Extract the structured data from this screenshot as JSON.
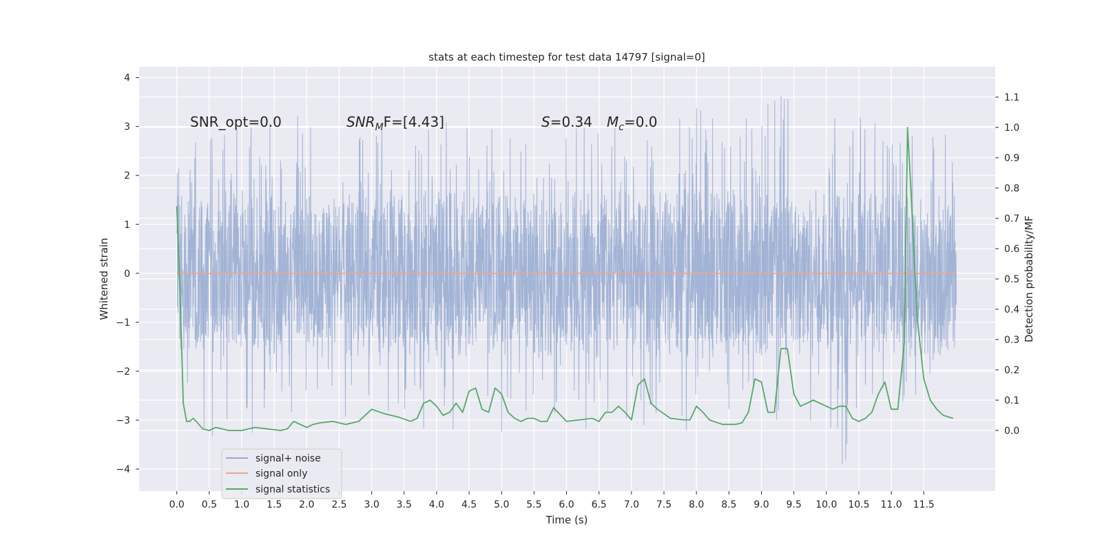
{
  "chart_data": {
    "type": "line",
    "title": "stats at each timestep for test data 14797 [signal=0]",
    "xlabel": "Time (s)",
    "ylabel": "Whitened strain",
    "y2label": "Detection probability/MF",
    "xlim": [
      -0.58,
      12.6
    ],
    "ylim": [
      -4.45,
      4.22
    ],
    "y2lim": [
      -0.2,
      1.2
    ],
    "grid": true,
    "legend_placement": "lower-left",
    "x_ticks": [
      "0.0",
      "0.5",
      "1.0",
      "1.5",
      "2.0",
      "2.5",
      "3.0",
      "3.5",
      "4.0",
      "4.5",
      "5.0",
      "5.5",
      "6.0",
      "6.5",
      "7.0",
      "7.5",
      "8.0",
      "8.5",
      "9.0",
      "9.5",
      "10.0",
      "10.5",
      "11.0",
      "11.5"
    ],
    "y_ticks": [
      "4",
      "3",
      "2",
      "1",
      "0",
      "−1",
      "−2",
      "−3",
      "−4"
    ],
    "y2_ticks": [
      "1.1",
      "1.0",
      "0.9",
      "0.8",
      "0.7",
      "0.6",
      "0.5",
      "0.4",
      "0.3",
      "0.2",
      "0.1",
      "0.0"
    ],
    "annotations": {
      "snr_opt": "SNR_opt=0.0",
      "snr_mf_base": "SNR",
      "snr_mf_sub": "M",
      "snr_mf_rest": "F=[4.43]",
      "s_var": "S",
      "s_value": "=0.34",
      "mc_var": "M",
      "mc_sub": "c",
      "mc_value": "=0.0"
    },
    "series": [
      {
        "name": "signal+ noise",
        "color": "#95a9d0",
        "axis": "left",
        "x_range": [
          0.0,
          12.0
        ],
        "envelope": {
          "typical_band": [
            -1.5,
            1.8
          ],
          "max": [
            [
              0.0,
              2.05
            ],
            [
              0.3,
              3.0
            ],
            [
              0.5,
              2.9
            ],
            [
              0.8,
              3.0
            ],
            [
              1.6,
              3.4
            ],
            [
              2.3,
              3.1
            ],
            [
              3.0,
              3.2
            ],
            [
              3.5,
              2.9
            ],
            [
              4.2,
              3.2
            ],
            [
              5.0,
              3.0
            ],
            [
              6.0,
              3.0
            ],
            [
              7.3,
              3.1
            ],
            [
              7.7,
              3.6
            ],
            [
              8.5,
              3.1
            ],
            [
              9.3,
              3.8
            ],
            [
              10.5,
              3.2
            ],
            [
              11.0,
              3.1
            ],
            [
              11.8,
              3.0
            ],
            [
              11.98,
              2.5
            ]
          ],
          "min": [
            [
              0.0,
              -2.4
            ],
            [
              0.5,
              -3.5
            ],
            [
              0.9,
              -3.6
            ],
            [
              1.7,
              -3.0
            ],
            [
              3.4,
              -3.1
            ],
            [
              4.7,
              -3.5
            ],
            [
              5.9,
              -3.1
            ],
            [
              6.6,
              -3.3
            ],
            [
              7.5,
              -3.0
            ],
            [
              8.2,
              -3.5
            ],
            [
              9.6,
              -3.0
            ],
            [
              10.3,
              -4.05
            ],
            [
              11.0,
              -2.85
            ],
            [
              11.95,
              -2.0
            ]
          ]
        }
      },
      {
        "name": "signal only",
        "color": "#e8a890",
        "axis": "left",
        "x": [
          0.0,
          12.0
        ],
        "y": [
          0.0,
          0.0
        ]
      },
      {
        "name": "signal statistics",
        "color": "#55a868",
        "axis": "right",
        "x": [
          0.0,
          0.05,
          0.1,
          0.15,
          0.2,
          0.25,
          0.3,
          0.4,
          0.5,
          0.6,
          0.7,
          0.8,
          1.0,
          1.2,
          1.4,
          1.6,
          1.7,
          1.8,
          1.9,
          2.0,
          2.1,
          2.2,
          2.4,
          2.6,
          2.8,
          3.0,
          3.2,
          3.4,
          3.6,
          3.7,
          3.8,
          3.9,
          4.0,
          4.1,
          4.2,
          4.3,
          4.4,
          4.5,
          4.6,
          4.7,
          4.8,
          4.9,
          5.0,
          5.1,
          5.2,
          5.3,
          5.4,
          5.5,
          5.6,
          5.7,
          5.8,
          6.0,
          6.2,
          6.4,
          6.5,
          6.6,
          6.7,
          6.8,
          6.9,
          7.0,
          7.1,
          7.2,
          7.3,
          7.4,
          7.6,
          7.8,
          7.9,
          8.0,
          8.1,
          8.2,
          8.4,
          8.6,
          8.7,
          8.8,
          8.9,
          9.0,
          9.1,
          9.2,
          9.3,
          9.4,
          9.5,
          9.6,
          9.7,
          9.8,
          9.9,
          10.0,
          10.1,
          10.2,
          10.3,
          10.4,
          10.5,
          10.6,
          10.7,
          10.8,
          10.9,
          11.0,
          11.1,
          11.2,
          11.25,
          11.3,
          11.4,
          11.5,
          11.6,
          11.7,
          11.8,
          11.95
        ],
        "y": [
          0.74,
          0.45,
          0.09,
          0.03,
          0.03,
          0.04,
          0.03,
          0.005,
          0.0,
          0.01,
          0.005,
          0.0,
          0.0,
          0.01,
          0.005,
          0.0,
          0.005,
          0.03,
          0.02,
          0.01,
          0.02,
          0.025,
          0.03,
          0.02,
          0.03,
          0.07,
          0.055,
          0.045,
          0.03,
          0.04,
          0.09,
          0.1,
          0.08,
          0.05,
          0.06,
          0.09,
          0.06,
          0.13,
          0.14,
          0.07,
          0.06,
          0.14,
          0.12,
          0.06,
          0.04,
          0.03,
          0.04,
          0.04,
          0.03,
          0.03,
          0.075,
          0.03,
          0.035,
          0.04,
          0.03,
          0.06,
          0.06,
          0.08,
          0.06,
          0.035,
          0.15,
          0.17,
          0.09,
          0.07,
          0.04,
          0.035,
          0.035,
          0.08,
          0.06,
          0.035,
          0.02,
          0.02,
          0.025,
          0.06,
          0.17,
          0.16,
          0.06,
          0.06,
          0.27,
          0.27,
          0.12,
          0.08,
          0.09,
          0.1,
          0.09,
          0.08,
          0.07,
          0.08,
          0.08,
          0.04,
          0.03,
          0.04,
          0.06,
          0.12,
          0.16,
          0.07,
          0.07,
          0.29,
          1.0,
          0.8,
          0.37,
          0.17,
          0.1,
          0.07,
          0.05,
          0.04
        ]
      }
    ]
  }
}
